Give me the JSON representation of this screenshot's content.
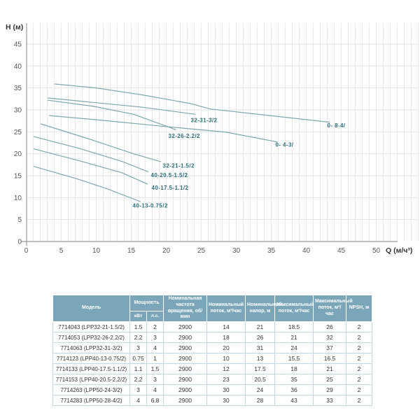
{
  "chart_data": {
    "type": "line",
    "title": "",
    "xlabel": "Q (м/ч³)",
    "ylabel": "H (м)",
    "xlim": [
      0,
      50
    ],
    "ylim": [
      0,
      47
    ],
    "x_ticks": [
      0,
      5,
      10,
      15,
      20,
      25,
      30,
      35,
      40,
      45,
      50
    ],
    "y_ticks": [
      0,
      5,
      10,
      15,
      20,
      25,
      30,
      35,
      40,
      45
    ],
    "grid": "vertical every 1 unit, horizontal every 5 m",
    "legend_position": "labels at curve ends",
    "colors": {
      "curve": "#7fa6ab",
      "curve_label": "#2b6f7c",
      "grid_minor": "#e9e9e9",
      "grid_major": "#e2e2e2",
      "axis": "#999999",
      "tick_text": "#555555",
      "axis_title": "#333333"
    },
    "series": [
      {
        "name": "0- 8-4/",
        "points": [
          [
            4.1,
            35.9
          ],
          [
            10,
            35.0
          ],
          [
            16.6,
            33.4
          ],
          [
            23.3,
            31.5
          ],
          [
            26.3,
            30.2
          ],
          [
            43.3,
            27.2
          ]
        ],
        "label_at": [
          43.0,
          26.0
        ]
      },
      {
        "name": "32-31-3/2",
        "points": [
          [
            3.1,
            32.7
          ],
          [
            9.6,
            31.7
          ],
          [
            16.6,
            30.6
          ],
          [
            24.1,
            29.0
          ]
        ],
        "label_at": [
          23.5,
          27.2
        ]
      },
      {
        "name": "32-26-2.2/2",
        "points": [
          [
            3.1,
            32.2
          ],
          [
            9.6,
            30.8
          ],
          [
            15.3,
            29.0
          ],
          [
            20,
            26.3
          ],
          [
            21.3,
            25.5
          ]
        ],
        "label_at": [
          20.3,
          23.6
        ]
      },
      {
        "name": "0- 4-3/",
        "points": [
          [
            3.3,
            28.7
          ],
          [
            11,
            27.6
          ],
          [
            19.3,
            26.3
          ],
          [
            28.6,
            24.9
          ],
          [
            35.8,
            22.7
          ]
        ],
        "label_at": [
          35.6,
          21.6
        ]
      },
      {
        "name": "32-21-1.5/2",
        "points": [
          [
            2.1,
            26.8
          ],
          [
            9.3,
            23.2
          ],
          [
            15.3,
            20.0
          ],
          [
            19.2,
            18.2
          ]
        ],
        "label_at": [
          19.5,
          16.8
        ]
      },
      {
        "name": "40-20.5-1.5/2",
        "points": [
          [
            1.1,
            23.9
          ],
          [
            7.6,
            21.2
          ],
          [
            13.6,
            18.3
          ],
          [
            17.4,
            15.9
          ]
        ],
        "label_at": [
          17.8,
          14.7
        ]
      },
      {
        "name": "40-17.5-1.1/2",
        "points": [
          [
            1.1,
            21.1
          ],
          [
            7.6,
            18.4
          ],
          [
            13.6,
            15.7
          ],
          [
            17.3,
            13.1
          ]
        ],
        "label_at": [
          17.9,
          11.8
        ]
      },
      {
        "name": "40-13-0.75/2",
        "points": [
          [
            1.1,
            17.1
          ],
          [
            7.0,
            14.4
          ],
          [
            11.6,
            12.0
          ],
          [
            16.3,
            9.1
          ]
        ],
        "label_at": [
          15.2,
          7.7
        ]
      }
    ]
  },
  "table": {
    "header": {
      "model": "Модель",
      "power": "Мощность",
      "power_kw": "кВт",
      "power_hp": "л.с.",
      "speed": "Номинальная частота вращения, об/мин",
      "nominal_flow": "Номинальный поток, м³/час",
      "nominal_head": "Номинальный напор, м",
      "max_flow": "Максимальный поток, м³/час",
      "max_flow2": "Максимальный поток, м³/час",
      "npsh": "NPSH, м"
    },
    "rows": [
      [
        "7714043 (LPP32-21-1.5/2)",
        "1.5",
        "2",
        "2900",
        "14",
        "21",
        "18.5",
        "26",
        "2"
      ],
      [
        "7714053 (LPP32-26-2.2/2)",
        "2.2",
        "3",
        "2900",
        "18",
        "26",
        "21",
        "32",
        "2"
      ],
      [
        "7714063 (LPP32-31-3/2)",
        "3",
        "4",
        "2900",
        "20",
        "31",
        "24",
        "37",
        "2"
      ],
      [
        "7714123 (LPP40-13-0.75/2)",
        "0.75",
        "1",
        "2900",
        "10",
        "13",
        "15.5",
        "16.5",
        "2"
      ],
      [
        "7714133 (LPP40-17.5-1.1/2)",
        "1.1",
        "1.5",
        "2900",
        "12",
        "17.5",
        "18",
        "21",
        "2"
      ],
      [
        "7714153 (LPP40-20.5-2.2/2)",
        "2.2",
        "3",
        "2900",
        "23",
        "20.5",
        "35",
        "25",
        "2"
      ],
      [
        "7714263 (LPP50-24-3/2)",
        "3",
        "4",
        "2900",
        "30",
        "24",
        "36",
        "29",
        "2"
      ],
      [
        "7714283 (LPP50-28-4/2)",
        "4",
        "6.8",
        "2900",
        "30",
        "28",
        "43",
        "33",
        "2"
      ]
    ]
  }
}
